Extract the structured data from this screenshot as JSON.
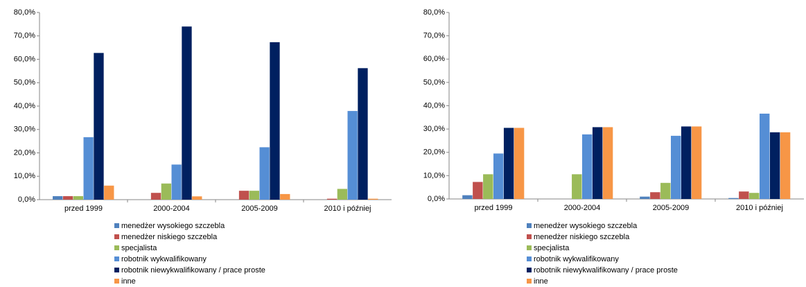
{
  "chart_data": [
    {
      "type": "bar",
      "categories": [
        "przed 1999",
        "2000-2004",
        "2005-2009",
        "2010 i później"
      ],
      "series": [
        {
          "name": "menedżer wysokiego szczebla",
          "color": "#4f81bd",
          "values": [
            1.5,
            0,
            0,
            0
          ]
        },
        {
          "name": "menedżer niskiego szczebla",
          "color": "#c0504d",
          "values": [
            1.5,
            2.9,
            3.8,
            0.4
          ]
        },
        {
          "name": "specjalista",
          "color": "#9bbb59",
          "values": [
            1.5,
            6.9,
            3.8,
            4.6
          ]
        },
        {
          "name": "robotnik wykwalifikowany",
          "color": "#558ed5",
          "values": [
            26.7,
            15.0,
            22.4,
            37.9
          ]
        },
        {
          "name": "robotnik niewykwalifikowany / prace proste",
          "color": "#002060",
          "values": [
            62.7,
            74.0,
            67.3,
            56.2
          ]
        },
        {
          "name": "inne",
          "color": "#f79646",
          "values": [
            6.0,
            1.4,
            2.4,
            0.4
          ]
        }
      ],
      "ylim": [
        0,
        80
      ],
      "yticks": [
        {
          "value": 0,
          "label": "0,0%"
        },
        {
          "value": 10,
          "label": "10,0%"
        },
        {
          "value": 20,
          "label": "20,0%"
        },
        {
          "value": 30,
          "label": "30,0%"
        },
        {
          "value": 40,
          "label": "40,0%"
        },
        {
          "value": 50,
          "label": "50,0%"
        },
        {
          "value": 60,
          "label": "60,0%"
        },
        {
          "value": 70,
          "label": "70,0%"
        },
        {
          "value": 80,
          "label": "80,0%"
        }
      ],
      "grid": false,
      "legend": "bottom"
    },
    {
      "type": "bar",
      "categories": [
        "przed 1999",
        "2000-2004",
        "2005-2009",
        "2010 i później"
      ],
      "series": [
        {
          "name": "menedżer wysokiego szczebla",
          "color": "#4f81bd",
          "values": [
            1.6,
            0,
            1.0,
            0.4
          ]
        },
        {
          "name": "menedżer niskiego szczebla",
          "color": "#c0504d",
          "values": [
            7.3,
            0,
            2.9,
            3.2
          ]
        },
        {
          "name": "specjalista",
          "color": "#9bbb59",
          "values": [
            10.6,
            10.6,
            6.9,
            2.6
          ]
        },
        {
          "name": "robotnik wykwalifikowany",
          "color": "#558ed5",
          "values": [
            19.5,
            27.7,
            27.1,
            36.6
          ]
        },
        {
          "name": "robotnik niewykwalifikowany / prace proste",
          "color": "#002060",
          "values": [
            30.5,
            30.8,
            31.1,
            28.6
          ]
        },
        {
          "name": "inne",
          "color": "#f79646",
          "values": [
            30.5,
            30.8,
            31.1,
            28.6
          ]
        }
      ],
      "ylim": [
        0,
        80
      ],
      "yticks": [
        {
          "value": 0,
          "label": "0,0%"
        },
        {
          "value": 10,
          "label": "10,0%"
        },
        {
          "value": 20,
          "label": "20,0%"
        },
        {
          "value": 30,
          "label": "30,0%"
        },
        {
          "value": 40,
          "label": "40,0%"
        },
        {
          "value": 50,
          "label": "50,0%"
        },
        {
          "value": 60,
          "label": "60,0%"
        },
        {
          "value": 70,
          "label": "70,0%"
        },
        {
          "value": 80,
          "label": "80,0%"
        }
      ],
      "grid": false,
      "legend": "bottom"
    }
  ]
}
